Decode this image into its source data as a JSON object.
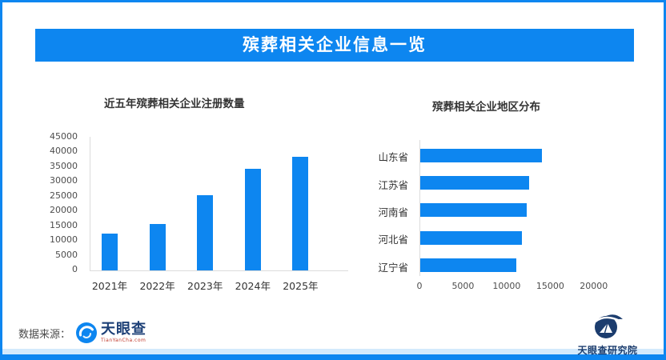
{
  "banner": {
    "title": "殡葬相关企业信息一览"
  },
  "source": {
    "label": "数据来源：",
    "logo_text": "天眼查",
    "logo_subtext": "TianYanCha.com"
  },
  "footer_logo": {
    "text": "天眼查研究院"
  },
  "colors": {
    "primary_blue": "#0d86f0",
    "navy": "#1c3d6e",
    "light_band": "#d3eafc",
    "axis_line": "#dcdcdc",
    "logo_red": "#c0392b"
  },
  "chart_data": [
    {
      "type": "bar",
      "title": "近五年殡葬相关企业注册数量",
      "categories": [
        "2021年",
        "2022年",
        "2023年",
        "2024年",
        "2025年"
      ],
      "values": [
        12400,
        15500,
        25300,
        34100,
        38300
      ],
      "xlabel": "",
      "ylabel": "",
      "ylim": [
        0,
        45000
      ],
      "yticks": [
        0,
        5000,
        10000,
        15000,
        20000,
        25000,
        30000,
        35000,
        40000,
        45000
      ],
      "grid": false,
      "legend": false,
      "bar_color": "#0d86f0"
    },
    {
      "type": "bar-horizontal",
      "title": "殡葬相关企业地区分布",
      "categories": [
        "山东省",
        "江苏省",
        "河南省",
        "河北省",
        "辽宁省"
      ],
      "values": [
        14000,
        12500,
        12200,
        11700,
        11000
      ],
      "xlabel": "",
      "ylabel": "",
      "xlim": [
        0,
        22500
      ],
      "xticks": [
        0,
        5000,
        10000,
        15000,
        20000
      ],
      "grid": false,
      "legend": false,
      "bar_color": "#0d86f0"
    }
  ]
}
